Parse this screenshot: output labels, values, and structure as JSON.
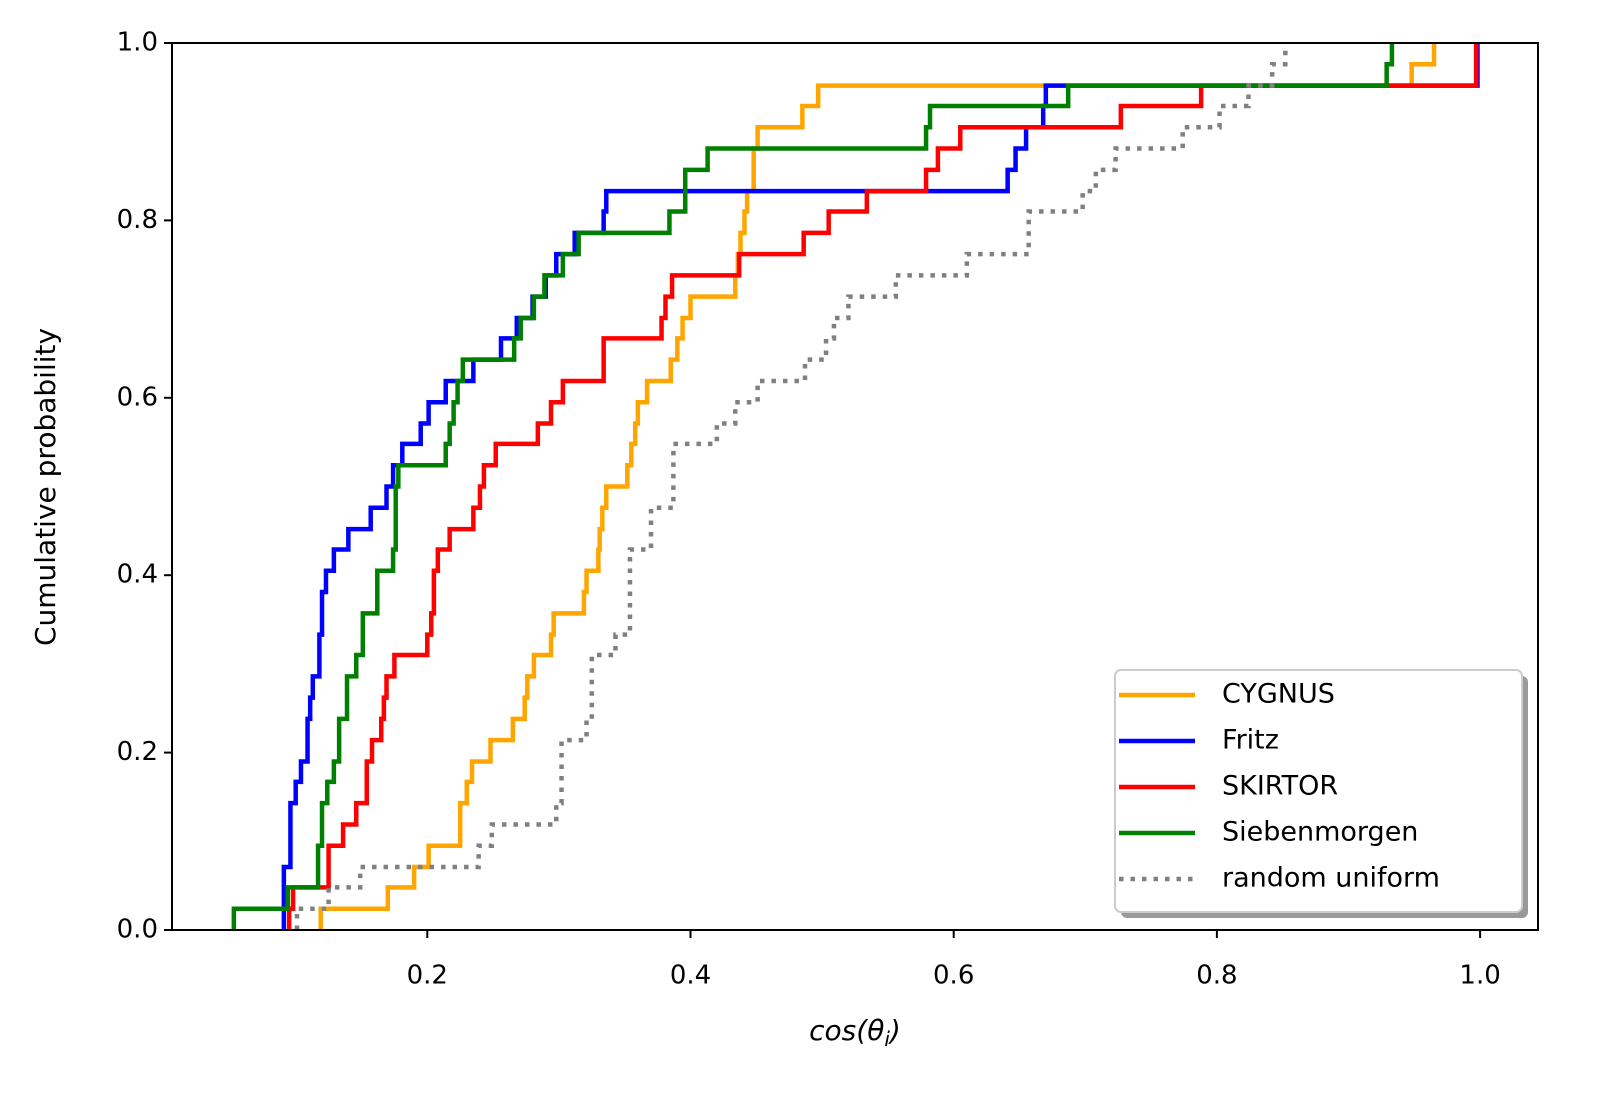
{
  "chart_data": {
    "type": "step",
    "x_label_parts": [
      "cos(θ",
      "i",
      ")"
    ],
    "y_label": "Cumulative probability",
    "xlim": [
      0.006,
      1.044
    ],
    "ylim": [
      0,
      1
    ],
    "xticks": [
      0.2,
      0.4,
      0.6,
      0.8,
      {
        "value": 1,
        "label": "1.0"
      }
    ],
    "yticks": [
      {
        "value": 0,
        "label": "0.0"
      },
      0.2,
      0.4,
      0.6,
      0.8,
      {
        "value": 1,
        "label": "1.0"
      }
    ],
    "grid": false,
    "legend_location": "lower right",
    "series": [
      {
        "name": "CYGNUS",
        "color": "#ffa500",
        "dash": "solid",
        "x": [
          0.119,
          0.17,
          0.19,
          0.201,
          0.225,
          0.23,
          0.234,
          0.248,
          0.265,
          0.274,
          0.276,
          0.281,
          0.294,
          0.296,
          0.319,
          0.321,
          0.33,
          0.331,
          0.333,
          0.336,
          0.352,
          0.355,
          0.358,
          0.36,
          0.367,
          0.385,
          0.39,
          0.394,
          0.4,
          0.434,
          0.436,
          0.438,
          0.441,
          0.443,
          0.448,
          0.451,
          0.485,
          0.497,
          0.948,
          0.965
        ],
        "values": [
          0.024,
          0.048,
          0.071,
          0.095,
          0.143,
          0.167,
          0.19,
          0.214,
          0.238,
          0.262,
          0.286,
          0.31,
          0.333,
          0.357,
          0.381,
          0.405,
          0.429,
          0.452,
          0.476,
          0.5,
          0.524,
          0.548,
          0.571,
          0.595,
          0.619,
          0.643,
          0.667,
          0.69,
          0.714,
          0.738,
          0.762,
          0.786,
          0.81,
          0.833,
          0.881,
          0.905,
          0.929,
          0.952,
          0.976,
          1.0
        ]
      },
      {
        "name": "Fritz",
        "color": "#0000ff",
        "dash": "solid",
        "x": [
          0.091,
          0.096,
          0.1,
          0.104,
          0.109,
          0.111,
          0.113,
          0.118,
          0.12,
          0.123,
          0.129,
          0.14,
          0.157,
          0.169,
          0.174,
          0.181,
          0.195,
          0.201,
          0.214,
          0.235,
          0.256,
          0.268,
          0.28,
          0.29,
          0.298,
          0.312,
          0.334,
          0.336,
          0.641,
          0.647,
          0.655,
          0.668,
          0.67,
          0.998
        ],
        "values": [
          0.071,
          0.143,
          0.167,
          0.19,
          0.238,
          0.262,
          0.286,
          0.333,
          0.381,
          0.405,
          0.429,
          0.452,
          0.476,
          0.5,
          0.524,
          0.548,
          0.571,
          0.595,
          0.619,
          0.643,
          0.667,
          0.69,
          0.714,
          0.738,
          0.762,
          0.786,
          0.81,
          0.833,
          0.857,
          0.881,
          0.905,
          0.929,
          0.952,
          1.0
        ]
      },
      {
        "name": "SKIRTOR",
        "color": "#ff0000",
        "dash": "solid",
        "x": [
          0.095,
          0.098,
          0.125,
          0.136,
          0.146,
          0.154,
          0.158,
          0.165,
          0.167,
          0.169,
          0.175,
          0.2,
          0.203,
          0.205,
          0.208,
          0.217,
          0.235,
          0.24,
          0.243,
          0.252,
          0.284,
          0.294,
          0.303,
          0.334,
          0.378,
          0.381,
          0.386,
          0.437,
          0.486,
          0.505,
          0.534,
          0.579,
          0.588,
          0.605,
          0.727,
          0.788,
          0.997
        ],
        "values": [
          0.024,
          0.048,
          0.095,
          0.119,
          0.143,
          0.19,
          0.214,
          0.238,
          0.262,
          0.286,
          0.31,
          0.333,
          0.357,
          0.405,
          0.429,
          0.452,
          0.476,
          0.5,
          0.524,
          0.548,
          0.571,
          0.595,
          0.619,
          0.667,
          0.69,
          0.714,
          0.738,
          0.762,
          0.786,
          0.81,
          0.833,
          0.857,
          0.881,
          0.905,
          0.929,
          0.952,
          1.0
        ]
      },
      {
        "name": "Siebenmorgen",
        "color": "#008000",
        "dash": "solid",
        "x": [
          0.053,
          0.094,
          0.117,
          0.12,
          0.124,
          0.129,
          0.133,
          0.139,
          0.146,
          0.151,
          0.162,
          0.174,
          0.176,
          0.178,
          0.214,
          0.217,
          0.22,
          0.223,
          0.227,
          0.266,
          0.271,
          0.281,
          0.289,
          0.303,
          0.315,
          0.384,
          0.396,
          0.413,
          0.579,
          0.582,
          0.687,
          0.929,
          0.933
        ],
        "values": [
          0.024,
          0.048,
          0.095,
          0.143,
          0.167,
          0.19,
          0.238,
          0.286,
          0.31,
          0.357,
          0.405,
          0.429,
          0.5,
          0.524,
          0.548,
          0.571,
          0.595,
          0.619,
          0.643,
          0.667,
          0.69,
          0.714,
          0.738,
          0.762,
          0.786,
          0.81,
          0.857,
          0.881,
          0.905,
          0.929,
          0.952,
          0.976,
          1.0
        ]
      },
      {
        "name": "random uniform",
        "color": "#808080",
        "dash": "dotted",
        "x": [
          0.101,
          0.125,
          0.149,
          0.239,
          0.249,
          0.298,
          0.302,
          0.321,
          0.325,
          0.343,
          0.354,
          0.37,
          0.387,
          0.42,
          0.434,
          0.451,
          0.487,
          0.503,
          0.509,
          0.52,
          0.556,
          0.61,
          0.657,
          0.698,
          0.708,
          0.723,
          0.774,
          0.802,
          0.824,
          0.842,
          0.852
        ],
        "values": [
          0.024,
          0.048,
          0.071,
          0.095,
          0.119,
          0.143,
          0.214,
          0.238,
          0.31,
          0.333,
          0.429,
          0.476,
          0.548,
          0.571,
          0.595,
          0.619,
          0.643,
          0.667,
          0.69,
          0.714,
          0.738,
          0.762,
          0.81,
          0.833,
          0.857,
          0.881,
          0.905,
          0.929,
          0.952,
          0.976,
          1.0
        ]
      }
    ]
  }
}
